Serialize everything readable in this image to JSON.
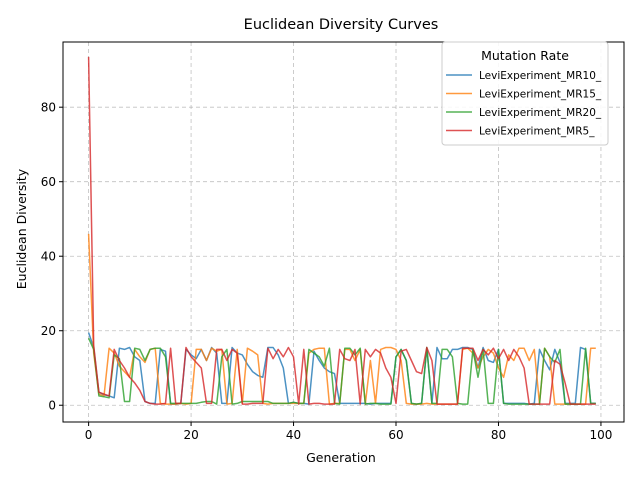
{
  "chart_data": {
    "type": "line",
    "title": "Euclidean Diversity Curves",
    "xlabel": "Generation",
    "ylabel": "Euclidean Diversity",
    "xlim": [
      -5,
      104.5
    ],
    "ylim": [
      -4.5,
      97.5
    ],
    "xticks": [
      0,
      20,
      40,
      60,
      80,
      100
    ],
    "yticks": [
      0,
      20,
      40,
      60,
      80
    ],
    "grid": true,
    "legend": {
      "title": "Mutation Rate",
      "position": "top-right"
    },
    "x": [
      0,
      1,
      2,
      3,
      4,
      5,
      6,
      7,
      8,
      9,
      10,
      11,
      12,
      13,
      14,
      15,
      16,
      17,
      18,
      19,
      20,
      21,
      22,
      23,
      24,
      25,
      26,
      27,
      28,
      29,
      30,
      31,
      32,
      33,
      34,
      35,
      36,
      37,
      38,
      39,
      40,
      41,
      42,
      43,
      44,
      45,
      46,
      47,
      48,
      49,
      50,
      51,
      52,
      53,
      54,
      55,
      56,
      57,
      58,
      59,
      60,
      61,
      62,
      63,
      64,
      65,
      66,
      67,
      68,
      69,
      70,
      71,
      72,
      73,
      74,
      75,
      76,
      77,
      78,
      79,
      80,
      81,
      82,
      83,
      84,
      85,
      86,
      87,
      88,
      89,
      90,
      91,
      92,
      93,
      94,
      95,
      96,
      97,
      98,
      99
    ],
    "series": [
      {
        "name": "LeviExperiment_MR10_",
        "color": "#1f77b4",
        "values": [
          19.5,
          15.5,
          3.5,
          2.8,
          2.5,
          2.0,
          15.3,
          15.0,
          15.5,
          13.0,
          12.0,
          1.0,
          0.5,
          0.5,
          15.0,
          14.5,
          0.3,
          0.3,
          0.5,
          15.0,
          13.5,
          12.5,
          15.0,
          12.0,
          15.5,
          14.0,
          0.5,
          0.5,
          15.5,
          14.0,
          13.5,
          11.0,
          9.0,
          8.0,
          7.5,
          15.5,
          15.5,
          13.5,
          10.0,
          0.5,
          0.8,
          0.5,
          0.5,
          0.3,
          14.5,
          12.0,
          10.0,
          9.0,
          8.5,
          0.5,
          0.5,
          0.5,
          0.5,
          0.5,
          0.5,
          0.3,
          0.5,
          0.5,
          0.5,
          0.5,
          13.0,
          15.0,
          12.0,
          0.5,
          0.3,
          0.5,
          15.5,
          0.5,
          15.5,
          12.5,
          12.5,
          15.0,
          15.0,
          15.5,
          15.5,
          15.0,
          10.0,
          15.5,
          12.0,
          11.5,
          15.0,
          0.5,
          0.5,
          0.5,
          0.5,
          0.5,
          0.3,
          0.5,
          15.0,
          12.0,
          9.5,
          15.0,
          11.5,
          0.5,
          0.5,
          0.5,
          15.5,
          15.0,
          0.5,
          0.5
        ]
      },
      {
        "name": "LeviExperiment_MR15_",
        "color": "#ff7f0e",
        "values": [
          46.0,
          14.0,
          3.0,
          2.5,
          15.3,
          14.0,
          10.5,
          9.0,
          7.5,
          15.0,
          13.0,
          11.5,
          15.0,
          15.3,
          0.5,
          0.3,
          0.3,
          0.3,
          0.5,
          0.3,
          0.5,
          15.0,
          15.0,
          12.0,
          15.3,
          14.5,
          15.0,
          0.3,
          0.5,
          15.0,
          0.5,
          15.3,
          14.5,
          13.5,
          0.5,
          0.3,
          0.5,
          0.5,
          0.5,
          0.5,
          0.5,
          0.5,
          0.5,
          14.0,
          15.0,
          15.3,
          15.3,
          0.3,
          0.5,
          0.5,
          15.0,
          15.0,
          12.0,
          15.0,
          0.3,
          12.0,
          0.5,
          15.0,
          15.5,
          15.5,
          15.0,
          12.0,
          0.5,
          0.3,
          0.3,
          0.3,
          0.5,
          0.3,
          0.3,
          0.3,
          0.3,
          0.3,
          0.3,
          15.0,
          15.3,
          14.0,
          10.0,
          13.0,
          15.0,
          14.0,
          10.0,
          7.5,
          13.5,
          12.0,
          15.3,
          15.3,
          12.0,
          15.0,
          0.3,
          15.3,
          13.0,
          0.3,
          0.3,
          0.3,
          0.3,
          0.3,
          0.3,
          0.3,
          15.3,
          15.3
        ]
      },
      {
        "name": "LeviExperiment_MR20_",
        "color": "#2ca02c",
        "values": [
          18.0,
          15.0,
          2.5,
          2.3,
          2.0,
          13.5,
          12.5,
          1.0,
          1.0,
          15.3,
          15.0,
          12.0,
          15.0,
          15.3,
          15.3,
          13.0,
          0.5,
          0.5,
          0.5,
          0.5,
          0.5,
          0.5,
          0.8,
          1.0,
          1.0,
          0.3,
          13.0,
          15.0,
          0.3,
          0.5,
          1.0,
          1.0,
          1.0,
          1.0,
          1.0,
          1.0,
          0.5,
          0.5,
          0.5,
          0.5,
          0.8,
          0.5,
          0.5,
          15.0,
          14.0,
          13.0,
          10.5,
          15.3,
          0.5,
          0.3,
          15.3,
          15.3,
          13.5,
          15.3,
          0.3,
          0.5,
          0.5,
          0.3,
          0.3,
          0.3,
          13.0,
          15.0,
          12.0,
          0.5,
          0.3,
          0.5,
          15.5,
          0.5,
          0.5,
          15.0,
          15.0,
          13.0,
          0.5,
          0.3,
          0.3,
          15.0,
          7.5,
          15.0,
          0.5,
          0.5,
          15.0,
          0.5,
          0.3,
          0.3,
          0.3,
          0.3,
          0.3,
          0.3,
          0.3,
          15.3,
          13.0,
          11.5,
          15.0,
          0.3,
          0.3,
          0.3,
          0.3,
          15.3,
          0.5,
          0.5
        ]
      },
      {
        "name": "LeviExperiment_MR5_",
        "color": "#d62728",
        "values": [
          93.5,
          16.0,
          3.5,
          3.0,
          2.5,
          15.0,
          12.0,
          10.0,
          7.5,
          6.0,
          4.0,
          1.0,
          0.5,
          0.3,
          0.3,
          0.5,
          15.3,
          0.5,
          0.5,
          15.5,
          13.0,
          11.5,
          10.0,
          0.5,
          0.5,
          15.0,
          15.0,
          12.0,
          15.0,
          14.0,
          0.3,
          0.3,
          0.5,
          0.5,
          0.5,
          15.3,
          12.5,
          15.0,
          13.0,
          15.5,
          13.0,
          0.3,
          15.0,
          0.3,
          0.5,
          0.5,
          0.3,
          0.3,
          0.3,
          15.0,
          12.5,
          12.0,
          15.0,
          0.3,
          15.0,
          13.0,
          15.0,
          14.0,
          10.0,
          7.5,
          0.5,
          14.5,
          15.0,
          12.0,
          9.0,
          8.5,
          15.5,
          12.0,
          0.3,
          0.3,
          0.3,
          0.3,
          0.3,
          15.3,
          15.3,
          15.3,
          12.0,
          15.0,
          13.5,
          15.3,
          12.5,
          15.0,
          12.0,
          15.0,
          13.0,
          10.0,
          0.3,
          0.3,
          0.3,
          0.3,
          0.3,
          12.0,
          11.0,
          6.0,
          0.3,
          0.3,
          0.3,
          0.3,
          0.3,
          0.3
        ]
      }
    ]
  }
}
